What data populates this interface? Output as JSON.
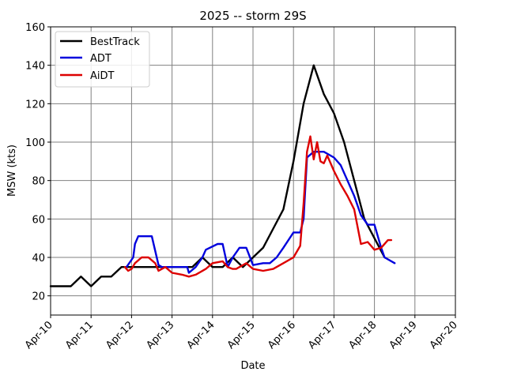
{
  "chart_data": {
    "type": "line",
    "title": "2025 -- storm 29S",
    "xlabel": "Date",
    "ylabel": "MSW (kts)",
    "xlim": [
      "2025-04-10",
      "2025-04-20"
    ],
    "ylim": [
      10,
      160
    ],
    "x_tick_labels": [
      "Apr-10",
      "Apr-11",
      "Apr-12",
      "Apr-13",
      "Apr-14",
      "Apr-15",
      "Apr-16",
      "Apr-17",
      "Apr-18",
      "Apr-19",
      "Apr-20"
    ],
    "y_ticks": [
      20,
      40,
      60,
      80,
      100,
      120,
      140,
      160
    ],
    "grid": true,
    "legend_position": "top-left",
    "series": [
      {
        "name": "BestTrack",
        "color": "#000000",
        "x": [
          "2025-04-10 00:00",
          "2025-04-10 12:00",
          "2025-04-10 18:00",
          "2025-04-11 00:00",
          "2025-04-11 06:00",
          "2025-04-11 12:00",
          "2025-04-11 18:00",
          "2025-04-12 00:00",
          "2025-04-12 06:00",
          "2025-04-12 12:00",
          "2025-04-12 18:00",
          "2025-04-13 00:00",
          "2025-04-13 06:00",
          "2025-04-13 12:00",
          "2025-04-13 18:00",
          "2025-04-14 00:00",
          "2025-04-14 06:00",
          "2025-04-14 12:00",
          "2025-04-14 18:00",
          "2025-04-15 00:00",
          "2025-04-15 06:00",
          "2025-04-15 12:00",
          "2025-04-15 18:00",
          "2025-04-16 00:00",
          "2025-04-16 06:00",
          "2025-04-16 12:00",
          "2025-04-16 18:00",
          "2025-04-17 00:00",
          "2025-04-17 06:00",
          "2025-04-17 12:00",
          "2025-04-17 18:00",
          "2025-04-18 00:00",
          "2025-04-18 06:00"
        ],
        "y": [
          25,
          25,
          30,
          25,
          30,
          30,
          35,
          35,
          35,
          35,
          35,
          35,
          35,
          35,
          40,
          35,
          35,
          40,
          35,
          40,
          45,
          55,
          65,
          90,
          120,
          140,
          125,
          115,
          100,
          80,
          60,
          50,
          40
        ]
      },
      {
        "name": "ADT",
        "color": "#0000dd",
        "x": [
          "2025-04-11 21:00",
          "2025-04-12 01:00",
          "2025-04-12 02:00",
          "2025-04-12 04:00",
          "2025-04-12 06:00",
          "2025-04-12 09:00",
          "2025-04-12 12:00",
          "2025-04-12 16:00",
          "2025-04-12 18:00",
          "2025-04-13 00:00",
          "2025-04-13 03:00",
          "2025-04-13 06:00",
          "2025-04-13 09:00",
          "2025-04-13 10:00",
          "2025-04-13 14:00",
          "2025-04-13 18:00",
          "2025-04-13 20:00",
          "2025-04-14 03:00",
          "2025-04-14 06:00",
          "2025-04-14 09:00",
          "2025-04-14 12:00",
          "2025-04-14 16:00",
          "2025-04-14 20:00",
          "2025-04-15 00:00",
          "2025-04-15 06:00",
          "2025-04-15 10:00",
          "2025-04-15 14:00",
          "2025-04-15 18:00",
          "2025-04-16 00:00",
          "2025-04-16 04:00",
          "2025-04-16 06:00",
          "2025-04-16 08:00",
          "2025-04-16 12:00",
          "2025-04-16 18:00",
          "2025-04-17 00:00",
          "2025-04-17 04:00",
          "2025-04-17 08:00",
          "2025-04-17 12:00",
          "2025-04-17 16:00",
          "2025-04-17 20:00",
          "2025-04-18 00:00",
          "2025-04-18 04:00",
          "2025-04-18 06:00",
          "2025-04-18 12:00"
        ],
        "y": [
          35,
          40,
          47,
          51,
          51,
          51,
          51,
          36,
          35,
          35,
          35,
          35,
          35,
          32,
          35,
          40,
          44,
          47,
          47,
          35,
          40,
          45,
          45,
          36,
          37,
          37,
          40,
          45,
          53,
          53,
          60,
          92,
          95,
          95,
          92,
          88,
          80,
          72,
          62,
          57,
          57,
          45,
          40,
          37
        ]
      },
      {
        "name": "AiDT",
        "color": "#dd0000",
        "x": [
          "2025-04-11 20:00",
          "2025-04-11 22:00",
          "2025-04-12 00:00",
          "2025-04-12 02:00",
          "2025-04-12 06:00",
          "2025-04-12 10:00",
          "2025-04-12 14:00",
          "2025-04-12 16:00",
          "2025-04-12 18:00",
          "2025-04-12 20:00",
          "2025-04-13 00:00",
          "2025-04-13 06:00",
          "2025-04-13 10:00",
          "2025-04-13 14:00",
          "2025-04-13 20:00",
          "2025-04-14 00:00",
          "2025-04-14 06:00",
          "2025-04-14 09:00",
          "2025-04-14 12:00",
          "2025-04-14 14:00",
          "2025-04-14 20:00",
          "2025-04-15 00:00",
          "2025-04-15 06:00",
          "2025-04-15 12:00",
          "2025-04-15 18:00",
          "2025-04-16 00:00",
          "2025-04-16 04:00",
          "2025-04-16 06:00",
          "2025-04-16 08:00",
          "2025-04-16 10:00",
          "2025-04-16 12:00",
          "2025-04-16 14:00",
          "2025-04-16 16:00",
          "2025-04-16 18:00",
          "2025-04-16 20:00",
          "2025-04-17 00:00",
          "2025-04-17 04:00",
          "2025-04-17 08:00",
          "2025-04-17 12:00",
          "2025-04-17 16:00",
          "2025-04-17 20:00",
          "2025-04-18 00:00",
          "2025-04-18 04:00",
          "2025-04-18 08:00",
          "2025-04-18 10:00"
        ],
        "y": [
          35,
          33,
          34,
          37,
          40,
          40,
          37,
          33,
          34,
          35,
          32,
          31,
          30,
          31,
          34,
          37,
          38,
          35,
          34,
          34,
          37,
          34,
          33,
          34,
          37,
          40,
          46,
          68,
          95,
          103,
          91,
          100,
          90,
          89,
          93,
          85,
          78,
          72,
          65,
          47,
          48,
          44,
          45,
          49,
          49
        ]
      }
    ]
  }
}
